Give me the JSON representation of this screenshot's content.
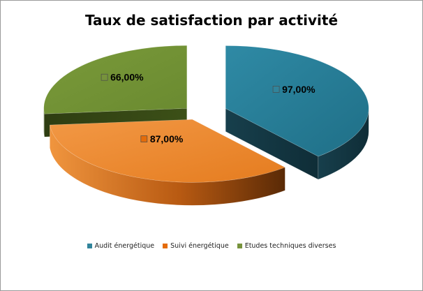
{
  "chart_data": {
    "type": "pie",
    "title": "Taux de satisfaction par activité",
    "categories": [
      "Audit énergétique",
      "Suivi énergétique",
      "Etudes techniques diverses"
    ],
    "values": [
      97,
      87,
      66
    ],
    "data_labels": [
      "97,00%",
      "87,00%",
      "66,00%"
    ],
    "colors": [
      "#31849B",
      "#E46C0A",
      "#77933C"
    ],
    "exploded": true,
    "three_d": true,
    "legend_position": "bottom"
  }
}
